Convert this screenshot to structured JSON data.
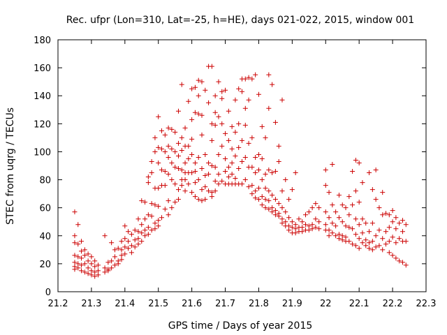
{
  "chart_data": {
    "type": "scatter",
    "title": "Rec. ufpr (Lon=310, Lat=-25, h=HE), days 021-022, 2015, window 001",
    "xlabel": "GPS time / Days of year 2015",
    "ylabel": "STEC from uqrg / TECUs",
    "xlim": [
      21.2,
      22.3
    ],
    "ylim": [
      0,
      180
    ],
    "xticks": [
      "21.2",
      "21.3",
      "21.4",
      "21.5",
      "21.6",
      "21.7",
      "21.8",
      "21.9",
      "22",
      "22.1",
      "22.2",
      "22.3"
    ],
    "yticks": [
      "0",
      "20",
      "40",
      "60",
      "80",
      "100",
      "120",
      "140",
      "160",
      "180"
    ],
    "grid": false,
    "legend": "none",
    "marker": "plus",
    "color": "#cc0000",
    "points": [
      [
        21.25,
        57
      ],
      [
        21.25,
        40
      ],
      [
        21.25,
        35
      ],
      [
        21.25,
        26
      ],
      [
        21.25,
        21
      ],
      [
        21.25,
        18
      ],
      [
        21.25,
        16
      ],
      [
        21.26,
        48
      ],
      [
        21.26,
        34
      ],
      [
        21.26,
        25
      ],
      [
        21.26,
        20
      ],
      [
        21.26,
        17
      ],
      [
        21.27,
        36
      ],
      [
        21.27,
        29
      ],
      [
        21.27,
        24
      ],
      [
        21.27,
        19
      ],
      [
        21.27,
        15
      ],
      [
        21.28,
        30
      ],
      [
        21.28,
        26
      ],
      [
        21.28,
        20
      ],
      [
        21.28,
        14
      ],
      [
        21.29,
        27
      ],
      [
        21.29,
        22
      ],
      [
        21.29,
        17
      ],
      [
        21.29,
        13
      ],
      [
        21.3,
        25
      ],
      [
        21.3,
        20
      ],
      [
        21.3,
        15
      ],
      [
        21.3,
        12
      ],
      [
        21.31,
        22
      ],
      [
        21.31,
        18
      ],
      [
        21.31,
        14
      ],
      [
        21.31,
        11
      ],
      [
        21.32,
        19
      ],
      [
        21.32,
        15
      ],
      [
        21.32,
        12
      ],
      [
        21.34,
        40
      ],
      [
        21.34,
        17
      ],
      [
        21.34,
        14
      ],
      [
        21.35,
        21
      ],
      [
        21.35,
        16
      ],
      [
        21.35,
        15
      ],
      [
        21.36,
        35
      ],
      [
        21.36,
        22
      ],
      [
        21.36,
        17
      ],
      [
        21.37,
        30
      ],
      [
        21.37,
        25
      ],
      [
        21.37,
        19
      ],
      [
        21.38,
        31
      ],
      [
        21.38,
        22
      ],
      [
        21.38,
        20
      ],
      [
        21.39,
        36
      ],
      [
        21.39,
        30
      ],
      [
        21.39,
        26
      ],
      [
        21.39,
        23
      ],
      [
        21.4,
        47
      ],
      [
        21.4,
        38
      ],
      [
        21.4,
        32
      ],
      [
        21.4,
        27
      ],
      [
        21.41,
        43
      ],
      [
        21.41,
        36
      ],
      [
        21.41,
        31
      ],
      [
        21.42,
        41
      ],
      [
        21.42,
        33
      ],
      [
        21.42,
        28
      ],
      [
        21.43,
        44
      ],
      [
        21.43,
        37
      ],
      [
        21.43,
        32
      ],
      [
        21.44,
        52
      ],
      [
        21.44,
        43
      ],
      [
        21.44,
        38
      ],
      [
        21.44,
        34
      ],
      [
        21.45,
        65
      ],
      [
        21.45,
        48
      ],
      [
        21.45,
        42
      ],
      [
        21.45,
        36
      ],
      [
        21.46,
        64
      ],
      [
        21.46,
        52
      ],
      [
        21.46,
        44
      ],
      [
        21.46,
        40
      ],
      [
        21.47,
        82
      ],
      [
        21.47,
        78
      ],
      [
        21.47,
        55
      ],
      [
        21.47,
        46
      ],
      [
        21.47,
        41
      ],
      [
        21.48,
        93
      ],
      [
        21.48,
        85
      ],
      [
        21.48,
        63
      ],
      [
        21.48,
        54
      ],
      [
        21.48,
        44
      ],
      [
        21.49,
        110
      ],
      [
        21.49,
        100
      ],
      [
        21.49,
        74
      ],
      [
        21.49,
        62
      ],
      [
        21.49,
        49
      ],
      [
        21.49,
        45
      ],
      [
        21.5,
        125
      ],
      [
        21.5,
        103
      ],
      [
        21.5,
        92
      ],
      [
        21.5,
        74
      ],
      [
        21.5,
        61
      ],
      [
        21.5,
        51
      ],
      [
        21.5,
        47
      ],
      [
        21.51,
        115
      ],
      [
        21.51,
        102
      ],
      [
        21.51,
        87
      ],
      [
        21.51,
        76
      ],
      [
        21.51,
        53
      ],
      [
        21.52,
        112
      ],
      [
        21.52,
        100
      ],
      [
        21.52,
        86
      ],
      [
        21.52,
        76
      ],
      [
        21.52,
        59
      ],
      [
        21.53,
        117
      ],
      [
        21.53,
        104
      ],
      [
        21.53,
        96
      ],
      [
        21.53,
        84
      ],
      [
        21.53,
        65
      ],
      [
        21.53,
        55
      ],
      [
        21.54,
        116
      ],
      [
        21.54,
        102
      ],
      [
        21.54,
        92
      ],
      [
        21.54,
        80
      ],
      [
        21.54,
        60
      ],
      [
        21.55,
        114
      ],
      [
        21.55,
        100
      ],
      [
        21.55,
        89
      ],
      [
        21.55,
        77
      ],
      [
        21.55,
        64
      ],
      [
        21.56,
        129
      ],
      [
        21.56,
        106
      ],
      [
        21.56,
        97
      ],
      [
        21.56,
        88
      ],
      [
        21.56,
        73
      ],
      [
        21.56,
        66
      ],
      [
        21.57,
        148
      ],
      [
        21.57,
        110
      ],
      [
        21.57,
        101
      ],
      [
        21.57,
        87
      ],
      [
        21.57,
        80
      ],
      [
        21.57,
        76
      ],
      [
        21.58,
        117
      ],
      [
        21.58,
        104
      ],
      [
        21.58,
        92
      ],
      [
        21.58,
        85
      ],
      [
        21.58,
        80
      ],
      [
        21.58,
        72
      ],
      [
        21.59,
        136
      ],
      [
        21.59,
        104
      ],
      [
        21.59,
        95
      ],
      [
        21.59,
        85
      ],
      [
        21.59,
        77
      ],
      [
        21.6,
        145
      ],
      [
        21.6,
        123
      ],
      [
        21.6,
        109
      ],
      [
        21.6,
        98
      ],
      [
        21.6,
        85
      ],
      [
        21.6,
        71
      ],
      [
        21.61,
        146
      ],
      [
        21.61,
        128
      ],
      [
        21.61,
        92
      ],
      [
        21.61,
        86
      ],
      [
        21.61,
        78
      ],
      [
        21.61,
        68
      ],
      [
        21.62,
        151
      ],
      [
        21.62,
        140
      ],
      [
        21.62,
        127
      ],
      [
        21.62,
        96
      ],
      [
        21.62,
        80
      ],
      [
        21.62,
        66
      ],
      [
        21.63,
        150
      ],
      [
        21.63,
        126
      ],
      [
        21.63,
        112
      ],
      [
        21.63,
        88
      ],
      [
        21.63,
        73
      ],
      [
        21.63,
        65
      ],
      [
        21.64,
        144
      ],
      [
        21.64,
        98
      ],
      [
        21.64,
        83
      ],
      [
        21.64,
        75
      ],
      [
        21.64,
        66
      ],
      [
        21.65,
        161
      ],
      [
        21.65,
        135
      ],
      [
        21.65,
        92
      ],
      [
        21.65,
        84
      ],
      [
        21.65,
        72
      ],
      [
        21.66,
        161
      ],
      [
        21.66,
        120
      ],
      [
        21.66,
        108
      ],
      [
        21.66,
        90
      ],
      [
        21.66,
        71
      ],
      [
        21.66,
        68
      ],
      [
        21.67,
        140
      ],
      [
        21.67,
        128
      ],
      [
        21.67,
        119
      ],
      [
        21.67,
        89
      ],
      [
        21.67,
        79
      ],
      [
        21.67,
        72
      ],
      [
        21.68,
        150
      ],
      [
        21.68,
        125
      ],
      [
        21.68,
        98
      ],
      [
        21.68,
        84
      ],
      [
        21.68,
        77
      ],
      [
        21.69,
        143
      ],
      [
        21.69,
        138
      ],
      [
        21.69,
        120
      ],
      [
        21.69,
        104
      ],
      [
        21.69,
        79
      ],
      [
        21.7,
        144
      ],
      [
        21.7,
        113
      ],
      [
        21.7,
        95
      ],
      [
        21.7,
        86
      ],
      [
        21.7,
        77
      ],
      [
        21.71,
        129
      ],
      [
        21.71,
        108
      ],
      [
        21.71,
        89
      ],
      [
        21.71,
        82
      ],
      [
        21.71,
        77
      ],
      [
        21.72,
        118
      ],
      [
        21.72,
        102
      ],
      [
        21.72,
        92
      ],
      [
        21.72,
        84
      ],
      [
        21.72,
        77
      ],
      [
        21.73,
        137
      ],
      [
        21.73,
        114
      ],
      [
        21.73,
        97
      ],
      [
        21.73,
        81
      ],
      [
        21.73,
        77
      ],
      [
        21.74,
        145
      ],
      [
        21.74,
        120
      ],
      [
        21.74,
        103
      ],
      [
        21.74,
        88
      ],
      [
        21.74,
        77
      ],
      [
        21.75,
        152
      ],
      [
        21.75,
        143
      ],
      [
        21.75,
        108
      ],
      [
        21.75,
        93
      ],
      [
        21.75,
        77
      ],
      [
        21.76,
        152
      ],
      [
        21.76,
        131
      ],
      [
        21.76,
        119
      ],
      [
        21.76,
        96
      ],
      [
        21.76,
        80
      ],
      [
        21.77,
        153
      ],
      [
        21.77,
        137
      ],
      [
        21.77,
        106
      ],
      [
        21.77,
        89
      ],
      [
        21.77,
        75
      ],
      [
        21.78,
        152
      ],
      [
        21.78,
        110
      ],
      [
        21.78,
        89
      ],
      [
        21.78,
        76
      ],
      [
        21.78,
        70
      ],
      [
        21.79,
        155
      ],
      [
        21.79,
        96
      ],
      [
        21.79,
        85
      ],
      [
        21.79,
        72
      ],
      [
        21.79,
        67
      ],
      [
        21.8,
        141
      ],
      [
        21.8,
        98
      ],
      [
        21.8,
        87
      ],
      [
        21.8,
        74
      ],
      [
        21.8,
        66
      ],
      [
        21.81,
        118
      ],
      [
        21.81,
        95
      ],
      [
        21.81,
        80
      ],
      [
        21.81,
        68
      ],
      [
        21.81,
        62
      ],
      [
        21.82,
        110
      ],
      [
        21.82,
        84
      ],
      [
        21.82,
        74
      ],
      [
        21.82,
        66
      ],
      [
        21.82,
        60
      ],
      [
        21.83,
        155
      ],
      [
        21.83,
        131
      ],
      [
        21.83,
        87
      ],
      [
        21.83,
        72
      ],
      [
        21.83,
        65
      ],
      [
        21.83,
        59
      ],
      [
        21.84,
        148
      ],
      [
        21.84,
        85
      ],
      [
        21.84,
        69
      ],
      [
        21.84,
        60
      ],
      [
        21.84,
        57
      ],
      [
        21.85,
        121
      ],
      [
        21.85,
        86
      ],
      [
        21.85,
        66
      ],
      [
        21.85,
        58
      ],
      [
        21.85,
        55
      ],
      [
        21.86,
        104
      ],
      [
        21.86,
        93
      ],
      [
        21.86,
        63
      ],
      [
        21.86,
        56
      ],
      [
        21.86,
        54
      ],
      [
        21.87,
        137
      ],
      [
        21.87,
        72
      ],
      [
        21.87,
        60
      ],
      [
        21.87,
        52
      ],
      [
        21.87,
        49
      ],
      [
        21.88,
        80
      ],
      [
        21.88,
        57
      ],
      [
        21.88,
        50
      ],
      [
        21.88,
        47
      ],
      [
        21.89,
        66
      ],
      [
        21.89,
        53
      ],
      [
        21.89,
        47
      ],
      [
        21.89,
        44
      ],
      [
        21.9,
        73
      ],
      [
        21.9,
        50
      ],
      [
        21.9,
        46
      ],
      [
        21.9,
        42
      ],
      [
        21.91,
        85
      ],
      [
        21.91,
        48
      ],
      [
        21.91,
        45
      ],
      [
        21.91,
        42
      ],
      [
        21.92,
        52
      ],
      [
        21.92,
        46
      ],
      [
        21.92,
        43
      ],
      [
        21.93,
        50
      ],
      [
        21.93,
        46
      ],
      [
        21.93,
        43
      ],
      [
        21.94,
        55
      ],
      [
        21.94,
        48
      ],
      [
        21.94,
        44
      ],
      [
        21.95,
        57
      ],
      [
        21.95,
        47
      ],
      [
        21.95,
        44
      ],
      [
        21.96,
        60
      ],
      [
        21.96,
        48
      ],
      [
        21.96,
        45
      ],
      [
        21.97,
        63
      ],
      [
        21.97,
        52
      ],
      [
        21.97,
        46
      ],
      [
        21.98,
        60
      ],
      [
        21.98,
        50
      ],
      [
        21.98,
        45
      ],
      [
        22.0,
        87
      ],
      [
        22.0,
        76
      ],
      [
        22.0,
        57
      ],
      [
        22.0,
        48
      ],
      [
        22.0,
        44
      ],
      [
        22.01,
        71
      ],
      [
        22.01,
        53
      ],
      [
        22.01,
        44
      ],
      [
        22.01,
        40
      ],
      [
        22.02,
        91
      ],
      [
        22.02,
        62
      ],
      [
        22.02,
        49
      ],
      [
        22.02,
        42
      ],
      [
        22.03,
        57
      ],
      [
        22.03,
        47
      ],
      [
        22.03,
        40
      ],
      [
        22.04,
        69
      ],
      [
        22.04,
        53
      ],
      [
        22.04,
        41
      ],
      [
        22.04,
        38
      ],
      [
        22.05,
        62
      ],
      [
        22.05,
        50
      ],
      [
        22.05,
        40
      ],
      [
        22.05,
        37
      ],
      [
        22.06,
        60
      ],
      [
        22.06,
        47
      ],
      [
        22.06,
        39
      ],
      [
        22.06,
        36
      ],
      [
        22.07,
        68
      ],
      [
        22.07,
        55
      ],
      [
        22.07,
        46
      ],
      [
        22.07,
        36
      ],
      [
        22.08,
        86
      ],
      [
        22.08,
        62
      ],
      [
        22.08,
        45
      ],
      [
        22.08,
        34
      ],
      [
        22.09,
        94
      ],
      [
        22.09,
        72
      ],
      [
        22.09,
        52
      ],
      [
        22.09,
        41
      ],
      [
        22.09,
        33
      ],
      [
        22.1,
        92
      ],
      [
        22.1,
        64
      ],
      [
        22.1,
        48
      ],
      [
        22.1,
        38
      ],
      [
        22.1,
        31
      ],
      [
        22.11,
        78
      ],
      [
        22.11,
        52
      ],
      [
        22.11,
        42
      ],
      [
        22.11,
        35
      ],
      [
        22.12,
        49
      ],
      [
        22.12,
        37
      ],
      [
        22.12,
        33
      ],
      [
        22.13,
        85
      ],
      [
        22.13,
        43
      ],
      [
        22.13,
        35
      ],
      [
        22.13,
        31
      ],
      [
        22.14,
        73
      ],
      [
        22.14,
        49
      ],
      [
        22.14,
        36
      ],
      [
        22.14,
        30
      ],
      [
        22.15,
        87
      ],
      [
        22.15,
        66
      ],
      [
        22.15,
        40
      ],
      [
        22.15,
        32
      ],
      [
        22.16,
        60
      ],
      [
        22.16,
        44
      ],
      [
        22.16,
        33
      ],
      [
        22.17,
        71
      ],
      [
        22.17,
        55
      ],
      [
        22.17,
        38
      ],
      [
        22.17,
        30
      ],
      [
        22.18,
        56
      ],
      [
        22.18,
        43
      ],
      [
        22.18,
        34
      ],
      [
        22.19,
        55
      ],
      [
        22.19,
        46
      ],
      [
        22.19,
        36
      ],
      [
        22.19,
        28
      ],
      [
        22.2,
        58
      ],
      [
        22.2,
        50
      ],
      [
        22.2,
        39
      ],
      [
        22.2,
        26
      ],
      [
        22.21,
        53
      ],
      [
        22.21,
        45
      ],
      [
        22.21,
        35
      ],
      [
        22.21,
        24
      ],
      [
        22.22,
        49
      ],
      [
        22.22,
        38
      ],
      [
        22.22,
        22
      ],
      [
        22.23,
        51
      ],
      [
        22.23,
        43
      ],
      [
        22.23,
        36
      ],
      [
        22.23,
        21
      ],
      [
        22.24,
        48
      ],
      [
        22.24,
        36
      ],
      [
        22.24,
        19
      ]
    ]
  }
}
